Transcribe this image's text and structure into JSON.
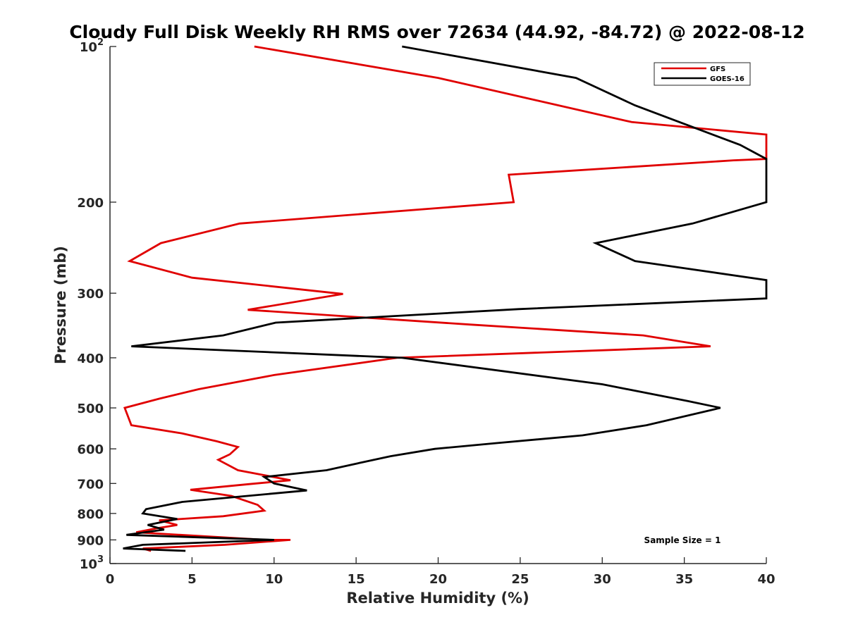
{
  "chart_data": {
    "type": "line",
    "title": "Cloudy Full Disk Weekly RH RMS over 72634 (44.92, -84.72) @ 2022-08-12",
    "xlabel": "Relative Humidity (%)",
    "ylabel": "Pressure (mb)",
    "xlim": [
      0,
      40
    ],
    "ylim": [
      100,
      1000
    ],
    "yscale": "log",
    "y_reversed": true,
    "x_ticks": [
      "0",
      "5",
      "10",
      "15",
      "20",
      "25",
      "30",
      "35",
      "40"
    ],
    "y_ticks": [
      {
        "value": 100,
        "base": "10",
        "exp": "2"
      },
      {
        "value": 200,
        "label": "200"
      },
      {
        "value": 300,
        "label": "300"
      },
      {
        "value": 400,
        "label": "400"
      },
      {
        "value": 500,
        "label": "500"
      },
      {
        "value": 600,
        "label": "600"
      },
      {
        "value": 700,
        "label": "700"
      },
      {
        "value": 800,
        "label": "800"
      },
      {
        "value": 900,
        "label": "900"
      },
      {
        "value": 1000,
        "base": "10",
        "exp": "3"
      }
    ],
    "legend_position": "top-right",
    "annotation": "Sample Size = 1",
    "series": [
      {
        "name": "GFS",
        "color": "#e00000",
        "points": [
          [
            8.8,
            100
          ],
          [
            20.0,
            115
          ],
          [
            31.8,
            140
          ],
          [
            40.0,
            148
          ],
          [
            40.0,
            165
          ],
          [
            38.0,
            166
          ],
          [
            24.3,
            177
          ],
          [
            24.6,
            200
          ],
          [
            7.9,
            220
          ],
          [
            3.1,
            240
          ],
          [
            1.2,
            260
          ],
          [
            5.0,
            280
          ],
          [
            14.2,
            301
          ],
          [
            8.4,
            323
          ],
          [
            22.0,
            345
          ],
          [
            32.5,
            362
          ],
          [
            36.6,
            380
          ],
          [
            17.5,
            400
          ],
          [
            10.0,
            432
          ],
          [
            5.4,
            460
          ],
          [
            3.0,
            480
          ],
          [
            0.9,
            500
          ],
          [
            1.3,
            540
          ],
          [
            4.4,
            560
          ],
          [
            6.5,
            580
          ],
          [
            7.8,
            595
          ],
          [
            7.3,
            615
          ],
          [
            6.6,
            630
          ],
          [
            7.8,
            660
          ],
          [
            11.0,
            690
          ],
          [
            8.5,
            702
          ],
          [
            4.9,
            720
          ],
          [
            7.4,
            740
          ],
          [
            9.0,
            770
          ],
          [
            9.4,
            790
          ],
          [
            6.9,
            810
          ],
          [
            3.0,
            825
          ],
          [
            4.1,
            842
          ],
          [
            2.8,
            855
          ],
          [
            1.6,
            870
          ],
          [
            9.5,
            900
          ],
          [
            11.0,
            900
          ],
          [
            7.0,
            920
          ],
          [
            2.0,
            935
          ],
          [
            2.5,
            945
          ]
        ]
      },
      {
        "name": "GOES-16",
        "color": "#000000",
        "points": [
          [
            17.8,
            100
          ],
          [
            28.4,
            115
          ],
          [
            32.0,
            130
          ],
          [
            38.4,
            155
          ],
          [
            40.0,
            165
          ],
          [
            40.0,
            200
          ],
          [
            35.5,
            220
          ],
          [
            29.6,
            240
          ],
          [
            32.0,
            260
          ],
          [
            40.0,
            283
          ],
          [
            40.0,
            307
          ],
          [
            24.9,
            322
          ],
          [
            10.1,
            342
          ],
          [
            6.9,
            362
          ],
          [
            1.3,
            380
          ],
          [
            17.8,
            400
          ],
          [
            30.0,
            450
          ],
          [
            35.2,
            485
          ],
          [
            37.2,
            500
          ],
          [
            32.7,
            540
          ],
          [
            28.8,
            565
          ],
          [
            23.5,
            585
          ],
          [
            19.8,
            600
          ],
          [
            17.1,
            620
          ],
          [
            15.1,
            640
          ],
          [
            13.2,
            660
          ],
          [
            9.4,
            680
          ],
          [
            10.0,
            700
          ],
          [
            12.0,
            722
          ],
          [
            4.4,
            760
          ],
          [
            2.2,
            785
          ],
          [
            2.0,
            800
          ],
          [
            4.1,
            820
          ],
          [
            2.3,
            842
          ],
          [
            3.3,
            860
          ],
          [
            1.0,
            880
          ],
          [
            10.0,
            900
          ],
          [
            2.0,
            920
          ],
          [
            0.8,
            935
          ],
          [
            4.6,
            945
          ]
        ]
      }
    ]
  }
}
